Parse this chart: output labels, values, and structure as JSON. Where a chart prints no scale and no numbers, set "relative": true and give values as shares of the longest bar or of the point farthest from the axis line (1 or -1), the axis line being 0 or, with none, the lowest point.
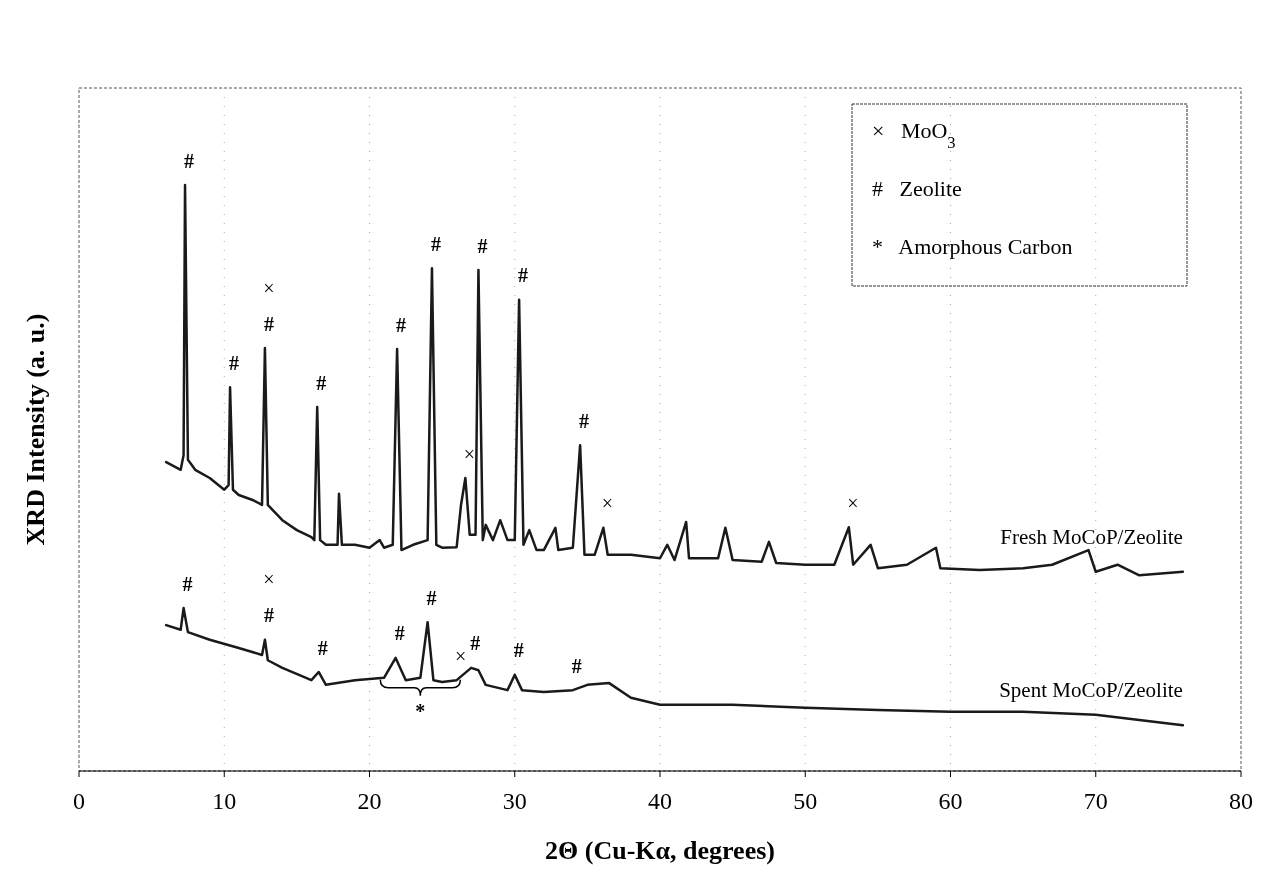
{
  "chart_data": {
    "type": "line",
    "relative": true,
    "xlabel": "2Θ (Cu-Kα, degrees)",
    "ylabel": "XRD Intensity (a. u.)",
    "xlim": [
      0,
      80
    ],
    "xticks": [
      0,
      10,
      20,
      30,
      40,
      50,
      60,
      70,
      80
    ],
    "grid": "x",
    "marker": "none",
    "line_style": "solid",
    "series": [
      {
        "name": "Fresh MoCoP/Zeolite",
        "color": "#1a1a1a",
        "x": [
          6,
          7,
          7.2,
          7.3,
          7.5,
          8,
          9,
          10,
          10.3,
          10.4,
          10.6,
          11,
          12,
          12.6,
          12.8,
          13,
          14,
          15,
          16,
          16.2,
          16.4,
          16.6,
          17,
          17.8,
          17.9,
          18.1,
          19,
          20,
          20.7,
          21,
          21.6,
          21.9,
          22.2,
          23,
          24,
          24.3,
          24.6,
          25,
          26,
          26.3,
          26.6,
          26.9,
          27.3,
          27.5,
          27.8,
          28,
          28.5,
          29,
          29.5,
          30,
          30.3,
          30.6,
          31,
          31.5,
          32,
          32.8,
          33,
          34,
          34.5,
          34.8,
          35.5,
          36.1,
          36.4,
          37,
          38,
          40,
          40.5,
          41,
          41.8,
          42,
          44,
          44.5,
          45,
          47,
          47.5,
          48,
          50,
          52,
          53,
          53.3,
          54.5,
          55,
          57,
          59,
          59.3,
          62,
          65,
          67,
          69.5,
          70,
          71.5,
          73,
          76
        ],
        "values": [
          0.527,
          0.514,
          0.539,
          1,
          0.531,
          0.514,
          0.5,
          0.48,
          0.488,
          0.655,
          0.48,
          0.471,
          0.462,
          0.454,
          0.722,
          0.454,
          0.428,
          0.411,
          0.399,
          0.394,
          0.621,
          0.394,
          0.386,
          0.386,
          0.473,
          0.386,
          0.386,
          0.381,
          0.394,
          0.381,
          0.386,
          0.72,
          0.377,
          0.386,
          0.394,
          0.858,
          0.386,
          0.381,
          0.382,
          0.454,
          0.5,
          0.403,
          0.403,
          0.855,
          0.394,
          0.42,
          0.394,
          0.428,
          0.394,
          0.394,
          0.804,
          0.386,
          0.411,
          0.377,
          0.377,
          0.415,
          0.377,
          0.381,
          0.556,
          0.369,
          0.369,
          0.415,
          0.369,
          0.369,
          0.369,
          0.363,
          0.386,
          0.36,
          0.425,
          0.363,
          0.363,
          0.415,
          0.36,
          0.357,
          0.391,
          0.355,
          0.352,
          0.352,
          0.416,
          0.352,
          0.386,
          0.346,
          0.352,
          0.381,
          0.346,
          0.343,
          0.346,
          0.352,
          0.377,
          0.34,
          0.352,
          0.334,
          0.34
        ]
      },
      {
        "name": "Spent MoCoP/Zeolite",
        "color": "#1a1a1a",
        "x": [
          6,
          7,
          7.2,
          7.5,
          9,
          11,
          12.6,
          12.8,
          13,
          14,
          16,
          16.5,
          17,
          19,
          21,
          21.8,
          22.5,
          23.5,
          24,
          24.4,
          25,
          26,
          27,
          27.5,
          28,
          29.5,
          30,
          30.5,
          32,
          34,
          35,
          36.5,
          38,
          40,
          45,
          50,
          55,
          60,
          65,
          70,
          76
        ],
        "values": [
          0.249,
          0.241,
          0.278,
          0.237,
          0.224,
          0.21,
          0.198,
          0.224,
          0.189,
          0.176,
          0.155,
          0.169,
          0.147,
          0.155,
          0.159,
          0.193,
          0.155,
          0.159,
          0.254,
          0.155,
          0.152,
          0.155,
          0.176,
          0.172,
          0.147,
          0.138,
          0.164,
          0.138,
          0.135,
          0.138,
          0.147,
          0.15,
          0.125,
          0.113,
          0.113,
          0.108,
          0.104,
          0.101,
          0.101,
          0.096,
          0.078
        ]
      }
    ],
    "annotations": [
      {
        "text": "#",
        "x": 7.3,
        "y": 1
      },
      {
        "text": "#",
        "x": 10.4,
        "y": 0.655
      },
      {
        "text": "#",
        "x": 12.8,
        "y": 0.722
      },
      {
        "text": "×",
        "x": 12.8,
        "y": 0.722
      },
      {
        "text": "#",
        "x": 16.4,
        "y": 0.621
      },
      {
        "text": "#",
        "x": 21.9,
        "y": 0.72
      },
      {
        "text": "#",
        "x": 24.3,
        "y": 0.858
      },
      {
        "text": "#",
        "x": 27.5,
        "y": 0.855
      },
      {
        "text": "#",
        "x": 30.3,
        "y": 0.804
      },
      {
        "text": "×",
        "x": 26.6,
        "y": 0.5
      },
      {
        "text": "#",
        "x": 34.5,
        "y": 0.556
      },
      {
        "text": "×",
        "x": 36.1,
        "y": 0.415
      },
      {
        "text": "×",
        "x": 53,
        "y": 0.416
      },
      {
        "text": "#",
        "x": 7.2,
        "y": 0.278
      },
      {
        "text": "#",
        "x": 12.8,
        "y": 0.224
      },
      {
        "text": "×",
        "x": 12.8,
        "y": 0.224
      },
      {
        "text": "#",
        "x": 16.5,
        "y": 0.169
      },
      {
        "text": "#",
        "x": 21.8,
        "y": 0.193
      },
      {
        "text": "#",
        "x": 24,
        "y": 0.254
      },
      {
        "text": "×",
        "x": 26,
        "y": 0.155
      },
      {
        "text": "#",
        "x": 27,
        "y": 0.176
      },
      {
        "text": "#",
        "x": 30,
        "y": 0.164
      },
      {
        "text": "#",
        "x": 34,
        "y": 0.138
      },
      {
        "text": "*",
        "x": 23.5,
        "y": 0.159
      },
      "×   MoO$_{3}$",
      "#   Zeolite",
      "*   Amorphous Carbon"
    ]
  }
}
